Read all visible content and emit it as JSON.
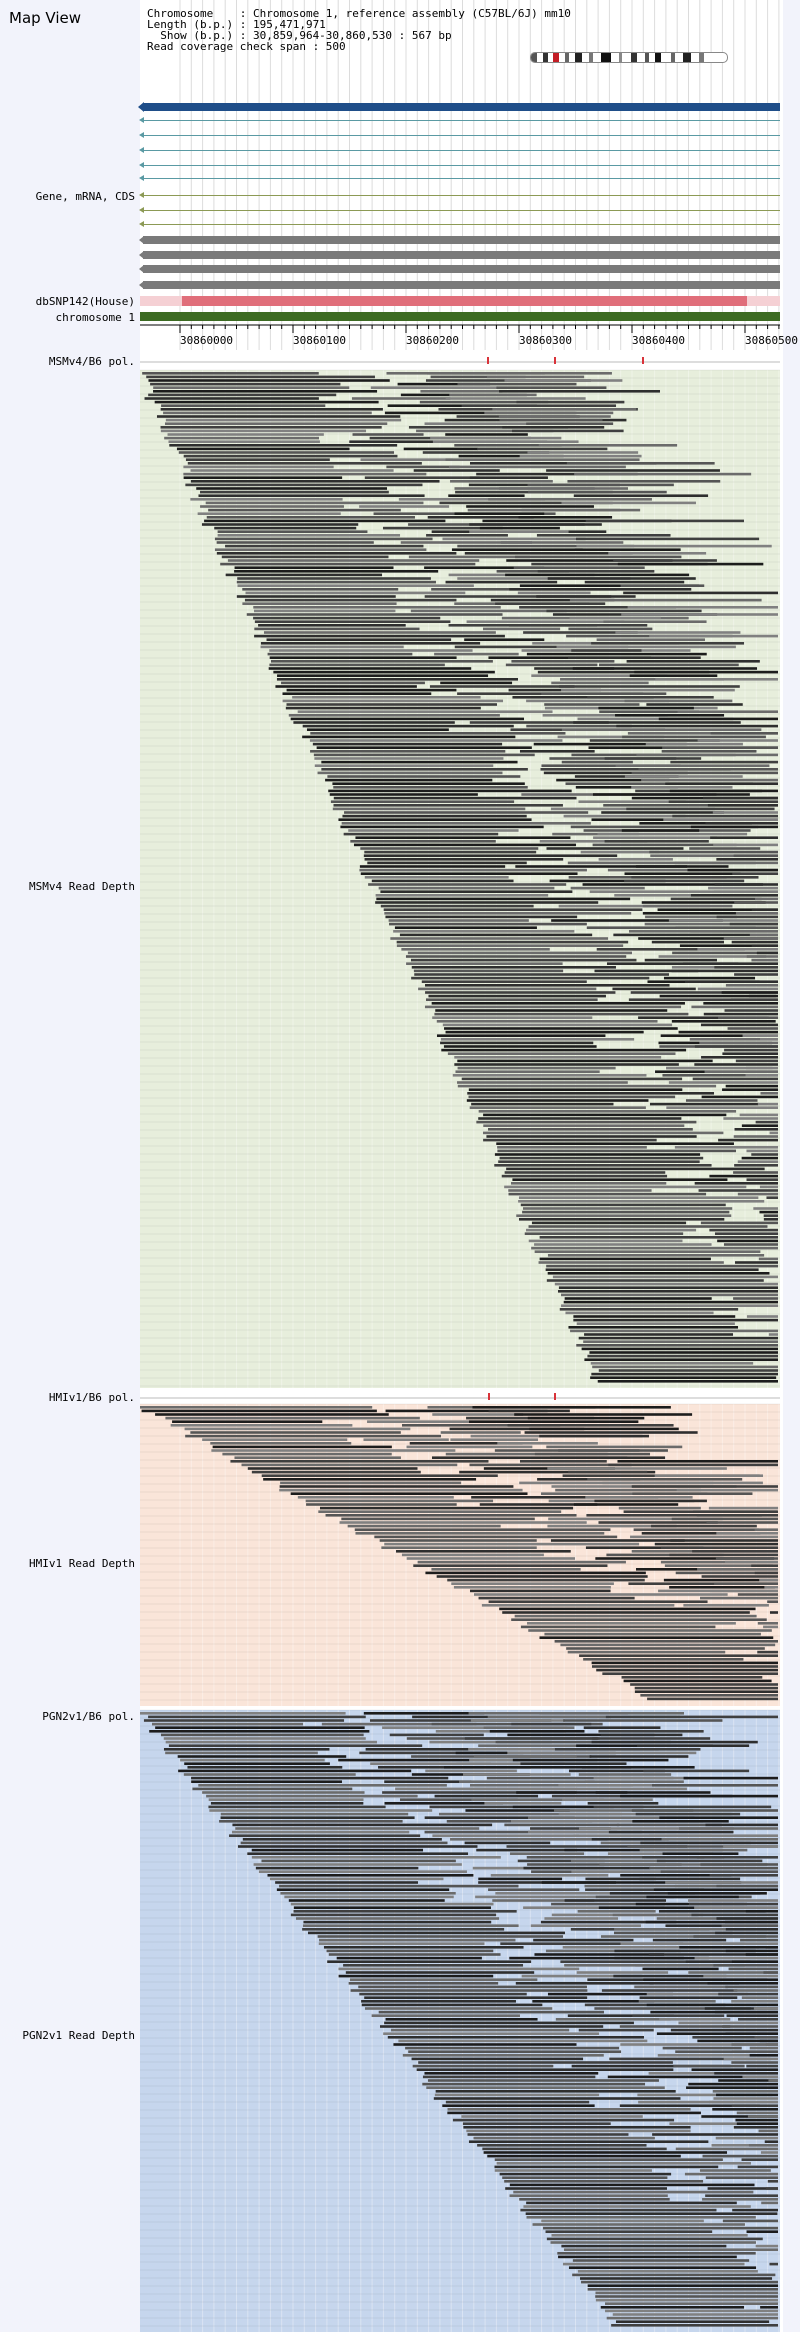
{
  "page": {
    "title": "Map View"
  },
  "header_info": {
    "chromosome_row": "Chromosome    : Chromosome 1, reference assembly (C57BL/6J) mm10",
    "length_row": "Length (b.p.) : 195,471,971",
    "show_row": "  Show (b.p.) : 30,859,964-30,860,530 : 567 bp",
    "span_row": "Read coverage check span : 500"
  },
  "tracks": {
    "gene_label": "Gene, mRNA, CDS",
    "dbsnp_label": "dbSNP142(House)",
    "chromosome_label": "chromosome 1",
    "msm_pol_label": "MSMv4/B6 pol.",
    "msm_depth_label": "MSMv4 Read Depth",
    "hmi_pol_label": "HMIv1/B6 pol.",
    "hmi_depth_label": "HMIv1 Read Depth",
    "pgn_pol_label": "PGN2v1/B6 pol.",
    "pgn_depth_label": "PGN2v1 Read Depth"
  },
  "ruler": {
    "tick_labels": [
      "30860000",
      "30860100",
      "30860200",
      "30860300",
      "30860400",
      "30860500"
    ]
  },
  "colors": {
    "sidebar_bg": "#f2f3fb",
    "gene_blue": "#1f4e89",
    "mrna_teal": "#5a9aa3",
    "cds_olive": "#8c9a55",
    "bar_gray": "#7a7a7a",
    "dbsnp_light": "#f5d0d4",
    "dbsnp_red": "#e06e7a",
    "chromosome_green": "#3d6b23",
    "msm_bg": "#e7eedc",
    "hmi_bg": "#fae5d9",
    "pgn_bg": "#c6d6ed",
    "pol_mark": "#d9333a"
  }
}
